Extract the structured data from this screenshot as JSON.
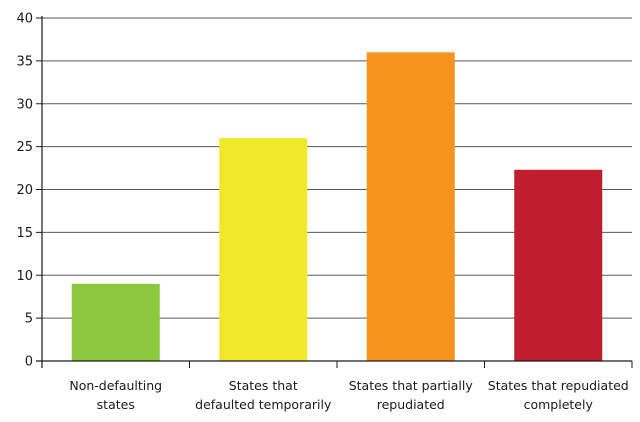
{
  "chart_data": {
    "type": "bar",
    "categories": [
      [
        "Non-defaulting",
        "states"
      ],
      [
        "States that",
        "defaulted temporarily"
      ],
      [
        "States that partially",
        "repudiated"
      ],
      [
        "States that repudiated",
        "completely"
      ]
    ],
    "values": [
      9,
      26,
      36,
      22.3
    ],
    "colors": [
      "#8dc63f",
      "#f0e92b",
      "#f7941d",
      "#be1e2d"
    ],
    "ylim": [
      0,
      40
    ],
    "yticks": [
      0,
      5,
      10,
      15,
      20,
      25,
      30,
      35,
      40
    ],
    "grid": true,
    "title": "",
    "xlabel": "",
    "ylabel": ""
  }
}
